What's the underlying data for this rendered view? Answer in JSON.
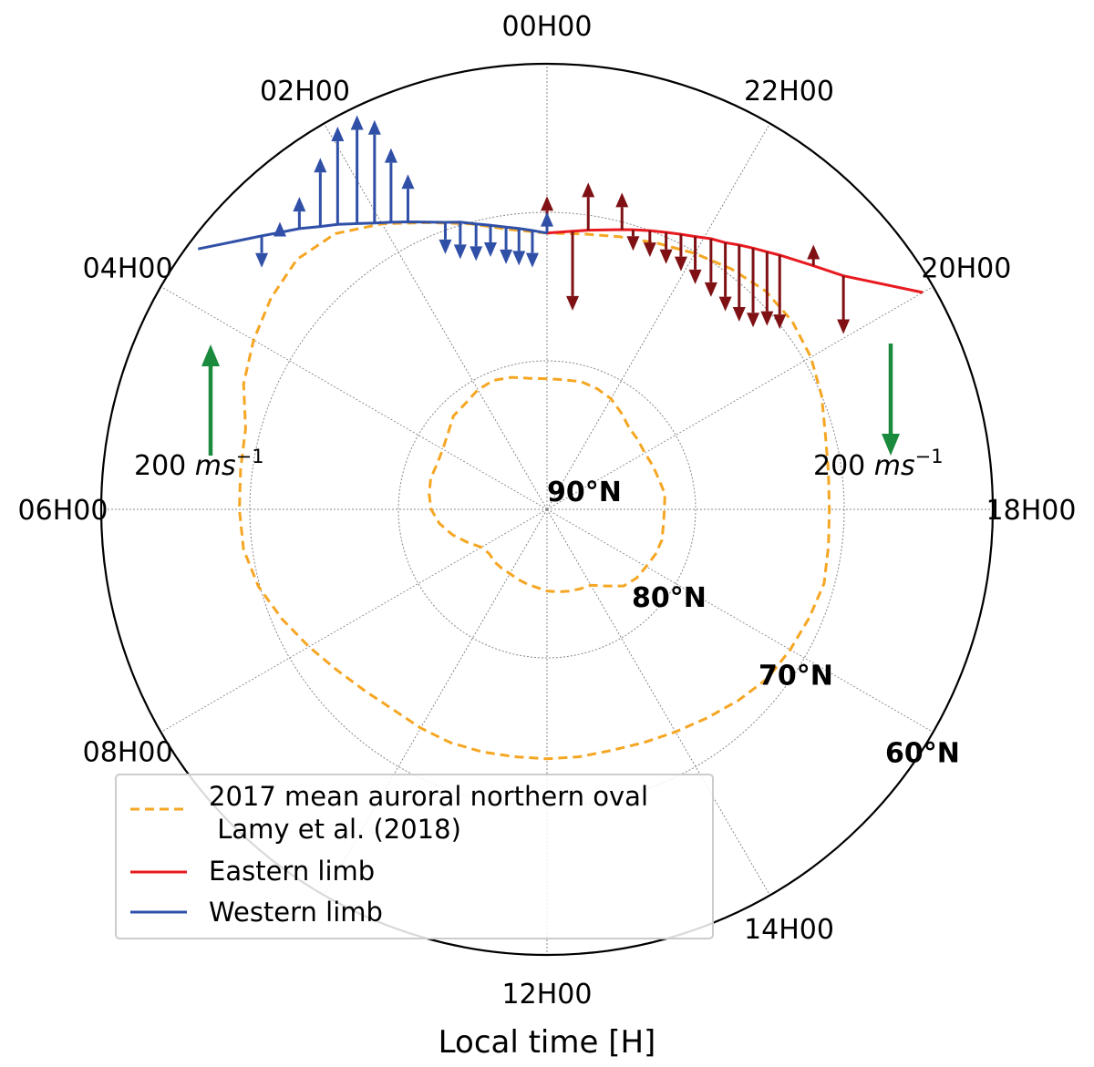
{
  "chart_data": {
    "type": "polar",
    "xlabel": "Local time [H]",
    "center_label": "90°N",
    "time_ticks": [
      {
        "label": "00H00",
        "hour": 0
      },
      {
        "label": "22H00",
        "hour": 22
      },
      {
        "label": "20H00",
        "hour": 20
      },
      {
        "label": "18H00",
        "hour": 18
      },
      {
        "label": "14H00",
        "hour": 14
      },
      {
        "label": "12H00",
        "hour": 12
      },
      {
        "label": "08H00",
        "hour": 8
      },
      {
        "label": "06H00",
        "hour": 6
      },
      {
        "label": "04H00",
        "hour": 4
      },
      {
        "label": "02H00",
        "hour": 2
      }
    ],
    "latitude_rings": [
      {
        "label": "80°N",
        "lat": 80
      },
      {
        "label": "70°N",
        "lat": 70
      },
      {
        "label": "60°N",
        "lat": 60
      }
    ],
    "scale_arrows": [
      {
        "label": "200 ms⁻¹",
        "label_main": "200 ",
        "label_unit": "ms",
        "label_exp": "−1",
        "value": 200,
        "direction": "up"
      },
      {
        "label": "200 ms⁻¹",
        "label_main": "200 ",
        "label_unit": "ms",
        "label_exp": "−1",
        "value": 200,
        "direction": "down"
      }
    ],
    "legend": [
      {
        "label_line1": "2017 mean auroral northern oval",
        "label_line2": " Lamy et al. (2018)",
        "style": "dashed",
        "color": "#f5a623"
      },
      {
        "label_line1": "Eastern limb",
        "label_line2": "",
        "style": "solid",
        "color": "#e8191f"
      },
      {
        "label_line1": "Western limb",
        "label_line2": "",
        "style": "solid",
        "color": "#3050a8"
      }
    ],
    "colors": {
      "eastern_limb": "#e8191f",
      "eastern_arrows": "#7f1115",
      "western_limb": "#3050a8",
      "oval": "#f5a623",
      "scale_arrow": "#1a8a3c",
      "grid": "#888888"
    },
    "series": [
      {
        "name": "Eastern limb",
        "unit": "m/s",
        "points": [
          {
            "hour": 24.0,
            "colat": 18.6,
            "v": 70
          },
          {
            "hour": 23.65,
            "colat": 18.8,
            "v": -150
          },
          {
            "hour": 23.44,
            "colat": 19.0,
            "v": 90
          },
          {
            "hour": 23.0,
            "colat": 19.5,
            "v": 70
          },
          {
            "hour": 22.86,
            "colat": 19.7,
            "v": -40
          },
          {
            "hour": 22.65,
            "colat": 20.0,
            "v": -50
          },
          {
            "hour": 22.45,
            "colat": 20.3,
            "v": -60
          },
          {
            "hour": 22.27,
            "colat": 20.6,
            "v": -70
          },
          {
            "hour": 22.1,
            "colat": 20.9,
            "v": -90
          },
          {
            "hour": 21.92,
            "colat": 21.3,
            "v": -110
          },
          {
            "hour": 21.75,
            "colat": 21.6,
            "v": -130
          },
          {
            "hour": 21.6,
            "colat": 22.0,
            "v": -145
          },
          {
            "hour": 21.45,
            "colat": 22.4,
            "v": -150
          },
          {
            "hour": 21.3,
            "colat": 22.8,
            "v": -140
          },
          {
            "hour": 21.17,
            "colat": 23.2,
            "v": -140
          },
          {
            "hour": 20.83,
            "colat": 24.3,
            "v": 40
          },
          {
            "hour": 20.55,
            "colat": 25.4,
            "v": -110
          }
        ]
      },
      {
        "name": "Western limb",
        "unit": "m/s",
        "points": [
          {
            "hour": 0.0,
            "colat": 18.6,
            "v": 40
          },
          {
            "hour": 0.2,
            "colat": 18.8,
            "v": -70
          },
          {
            "hour": 0.38,
            "colat": 19.0,
            "v": -70
          },
          {
            "hour": 0.55,
            "colat": 19.2,
            "v": -70
          },
          {
            "hour": 0.75,
            "colat": 19.5,
            "v": -60
          },
          {
            "hour": 0.93,
            "colat": 19.8,
            "v": -70
          },
          {
            "hour": 1.12,
            "colat": 20.2,
            "v": -70
          },
          {
            "hour": 1.3,
            "colat": 20.5,
            "v": -60
          },
          {
            "hour": 1.72,
            "colat": 21.5,
            "v": 90
          },
          {
            "hour": 1.9,
            "colat": 22.0,
            "v": 140
          },
          {
            "hour": 2.07,
            "colat": 22.5,
            "v": 195
          },
          {
            "hour": 2.24,
            "colat": 23.1,
            "v": 205
          },
          {
            "hour": 2.42,
            "colat": 23.8,
            "v": 185
          },
          {
            "hour": 2.58,
            "colat": 24.4,
            "v": 130
          },
          {
            "hour": 2.76,
            "colat": 25.2,
            "v": 60
          },
          {
            "hour": 2.93,
            "colat": 25.9,
            "v": 20
          },
          {
            "hour": 3.08,
            "colat": 26.6,
            "v": -60
          }
        ]
      }
    ],
    "oval_outer": [
      {
        "hour": 0,
        "colat": 18.6
      },
      {
        "hour": 0.5,
        "colat": 19.0
      },
      {
        "hour": 1.0,
        "colat": 19.9
      },
      {
        "hour": 1.5,
        "colat": 20.9
      },
      {
        "hour": 2.0,
        "colat": 22.2
      },
      {
        "hour": 2.5,
        "colat": 23.4
      },
      {
        "hour": 3.0,
        "colat": 23.8
      },
      {
        "hour": 3.5,
        "colat": 23.4
      },
      {
        "hour": 4.0,
        "colat": 22.8
      },
      {
        "hour": 4.5,
        "colat": 22.1
      },
      {
        "hour": 5.0,
        "colat": 21.0
      },
      {
        "hour": 5.5,
        "colat": 20.8
      },
      {
        "hour": 6.0,
        "colat": 20.7
      },
      {
        "hour": 6.5,
        "colat": 20.6
      },
      {
        "hour": 7.0,
        "colat": 20.1
      },
      {
        "hour": 7.5,
        "colat": 19.3
      },
      {
        "hour": 8.0,
        "colat": 18.5
      },
      {
        "hour": 8.5,
        "colat": 17.8
      },
      {
        "hour": 9.0,
        "colat": 17.3
      },
      {
        "hour": 9.5,
        "colat": 17.0
      },
      {
        "hour": 10.0,
        "colat": 17.0
      },
      {
        "hour": 10.5,
        "colat": 17.0
      },
      {
        "hour": 11.0,
        "colat": 16.9
      },
      {
        "hour": 11.5,
        "colat": 16.8
      },
      {
        "hour": 12.0,
        "colat": 16.8
      },
      {
        "hour": 12.5,
        "colat": 16.8
      },
      {
        "hour": 13.0,
        "colat": 16.8
      },
      {
        "hour": 13.5,
        "colat": 17.0
      },
      {
        "hour": 14.0,
        "colat": 17.3
      },
      {
        "hour": 14.5,
        "colat": 17.7
      },
      {
        "hour": 15.0,
        "colat": 18.2
      },
      {
        "hour": 15.5,
        "colat": 18.7
      },
      {
        "hour": 16.0,
        "colat": 18.9
      },
      {
        "hour": 16.5,
        "colat": 19.1
      },
      {
        "hour": 17.0,
        "colat": 19.3
      },
      {
        "hour": 17.5,
        "colat": 19.1
      },
      {
        "hour": 18.0,
        "colat": 19.0
      },
      {
        "hour": 18.5,
        "colat": 19.1
      },
      {
        "hour": 19.0,
        "colat": 19.4
      },
      {
        "hour": 19.5,
        "colat": 20.0
      },
      {
        "hour": 20.0,
        "colat": 20.5
      },
      {
        "hour": 20.5,
        "colat": 20.8
      },
      {
        "hour": 21.0,
        "colat": 20.8
      },
      {
        "hour": 21.5,
        "colat": 20.4
      },
      {
        "hour": 22.0,
        "colat": 19.9
      },
      {
        "hour": 22.5,
        "colat": 19.4
      },
      {
        "hour": 23.0,
        "colat": 19.0
      },
      {
        "hour": 23.5,
        "colat": 18.7
      }
    ],
    "oval_inner": [
      {
        "hour": 0,
        "colat": 8.8
      },
      {
        "hour": 0.5,
        "colat": 8.9
      },
      {
        "hour": 1.0,
        "colat": 9.2
      },
      {
        "hour": 1.5,
        "colat": 9.4
      },
      {
        "hour": 2.0,
        "colat": 9.3
      },
      {
        "hour": 2.5,
        "colat": 9.0
      },
      {
        "hour": 3.0,
        "colat": 8.9
      },
      {
        "hour": 3.5,
        "colat": 8.4
      },
      {
        "hour": 4.0,
        "colat": 8.1
      },
      {
        "hour": 4.5,
        "colat": 8.0
      },
      {
        "hour": 5.0,
        "colat": 8.1
      },
      {
        "hour": 5.5,
        "colat": 8.0
      },
      {
        "hour": 6.0,
        "colat": 7.8
      },
      {
        "hour": 6.5,
        "colat": 7.3
      },
      {
        "hour": 7.0,
        "colat": 6.6
      },
      {
        "hour": 7.5,
        "colat": 5.8
      },
      {
        "hour": 8.0,
        "colat": 5.1
      },
      {
        "hour": 8.5,
        "colat": 4.9
      },
      {
        "hour": 9.0,
        "colat": 5.0
      },
      {
        "hour": 9.5,
        "colat": 5.0
      },
      {
        "hour": 10.0,
        "colat": 5.0
      },
      {
        "hour": 10.5,
        "colat": 5.1
      },
      {
        "hour": 11.0,
        "colat": 5.2
      },
      {
        "hour": 11.5,
        "colat": 5.3
      },
      {
        "hour": 12.0,
        "colat": 5.5
      },
      {
        "hour": 12.5,
        "colat": 5.6
      },
      {
        "hour": 13.0,
        "colat": 5.7
      },
      {
        "hour": 13.5,
        "colat": 5.8
      },
      {
        "hour": 14.0,
        "colat": 5.9
      },
      {
        "hour": 14.5,
        "colat": 6.5
      },
      {
        "hour": 15.0,
        "colat": 7.3
      },
      {
        "hour": 15.5,
        "colat": 7.6
      },
      {
        "hour": 16.0,
        "colat": 7.7
      },
      {
        "hour": 16.5,
        "colat": 7.9
      },
      {
        "hour": 17.0,
        "colat": 8.0
      },
      {
        "hour": 17.5,
        "colat": 7.9
      },
      {
        "hour": 18.0,
        "colat": 7.9
      },
      {
        "hour": 18.5,
        "colat": 8.0
      },
      {
        "hour": 19.0,
        "colat": 7.8
      },
      {
        "hour": 19.5,
        "colat": 7.7
      },
      {
        "hour": 20.0,
        "colat": 7.6
      },
      {
        "hour": 20.5,
        "colat": 7.7
      },
      {
        "hour": 21.0,
        "colat": 7.8
      },
      {
        "hour": 21.5,
        "colat": 8.2
      },
      {
        "hour": 22.0,
        "colat": 8.6
      },
      {
        "hour": 22.5,
        "colat": 8.8
      },
      {
        "hour": 23.0,
        "colat": 8.9
      },
      {
        "hour": 23.5,
        "colat": 8.8
      }
    ]
  }
}
